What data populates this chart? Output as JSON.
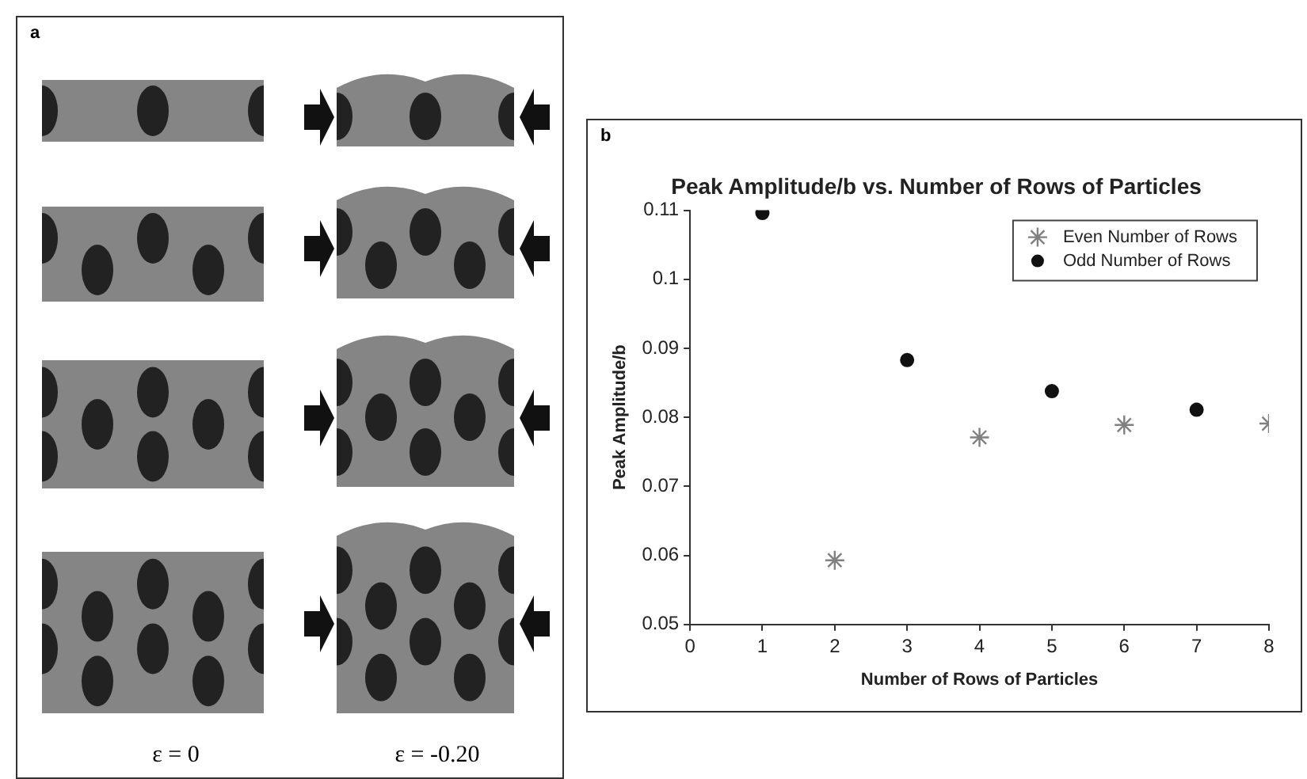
{
  "chart_data": {
    "type": "scatter",
    "title": "Peak Amplitude/b vs. Number of Rows of Particles",
    "xlabel": "Number of Rows of Particles",
    "ylabel": "Peak Amplitude/b",
    "annotations": [
      "a",
      "ε = 0",
      "ε = -0.20",
      "b"
    ],
    "series": [
      {
        "name": "Even Number of Rows",
        "color": "#808080",
        "marker": "cross",
        "x": [
          2,
          4,
          6,
          8
        ],
        "values": [
          0.0593,
          0.0771,
          0.0789,
          0.0791
        ]
      },
      {
        "name": "Odd Number of Rows",
        "color": "#111111",
        "marker": "circle",
        "x": [
          1,
          3,
          5,
          7
        ],
        "values": [
          0.1096,
          0.0883,
          0.0838,
          0.0811
        ]
      }
    ],
    "xlim": [
      0,
      8
    ],
    "xticks": [
      0,
      1,
      2,
      3,
      4,
      5,
      6,
      7,
      8
    ],
    "ylim": [
      0.05,
      0.11
    ],
    "yticks": [
      0.05,
      0.06,
      0.07,
      0.08,
      0.09,
      0.1,
      0.11
    ],
    "grid": false,
    "legend": "top right"
  }
}
